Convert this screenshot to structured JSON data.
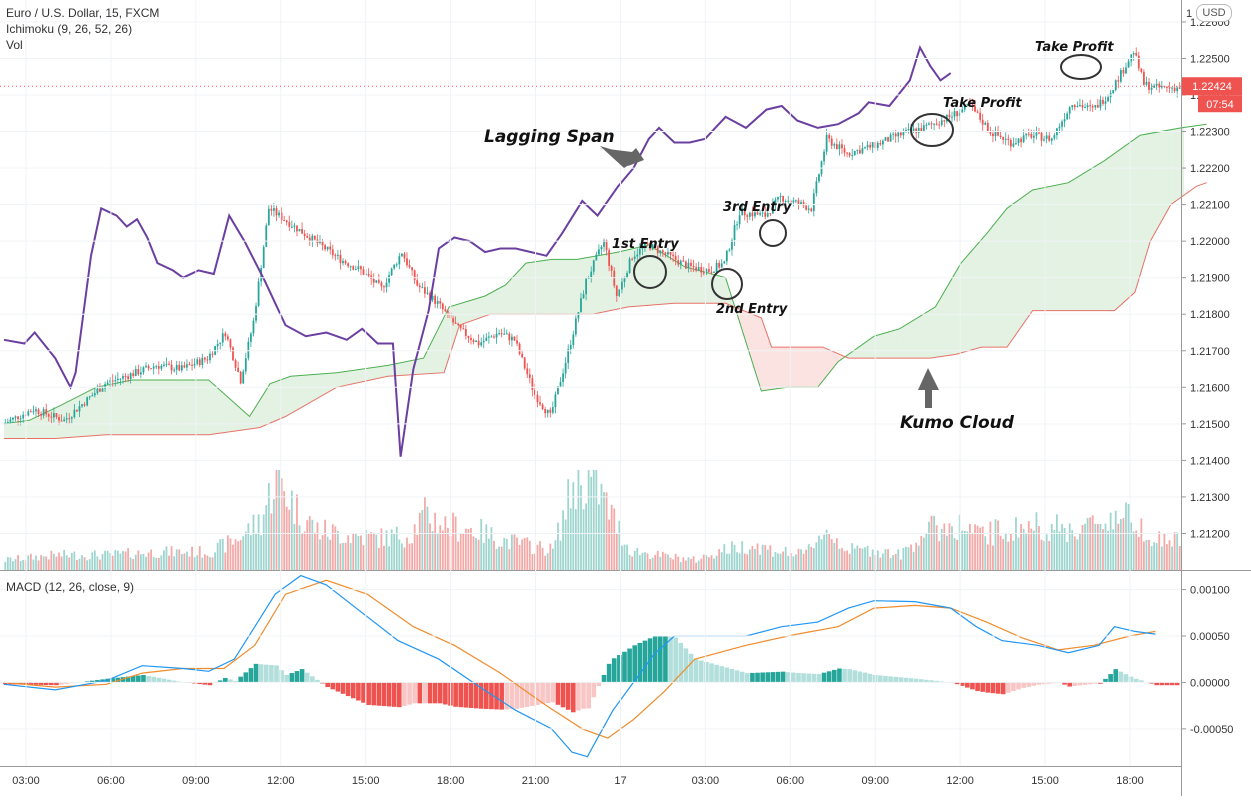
{
  "header": {
    "symbol_line": "Euro / U.S. Dollar, 15, FXCM",
    "ichimoku_line": "Ichimoku (9, 26, 52, 26)",
    "vol_line": "Vol",
    "macd_line": "MACD (12, 26, close, 9)",
    "currency_badge": "USD",
    "scale_top_label": "1"
  },
  "price_tag": {
    "price": "1.22424",
    "countdown": "07:54",
    "color": "#ef5350"
  },
  "colors": {
    "up": "#26a69a",
    "down": "#ef5350",
    "vol_up": "#9fd5cf",
    "vol_down": "#f3a9a7",
    "lagging": "#6b3fa0",
    "senkou_a": "#4caf50",
    "senkou_b": "#e57368",
    "cloud_bull": "#e3f2e3",
    "cloud_bear": "#fbe3e2",
    "macd": "#2196f3",
    "signal": "#ef8c2d",
    "hist_up_strong": "#26a69a",
    "hist_up_weak": "#b2dfdb",
    "hist_down_strong": "#ef5350",
    "hist_down_weak": "#f8c6c4"
  },
  "chart_data": {
    "type": "candlestick",
    "title": "Euro / U.S. Dollar, 15, FXCM",
    "x_tick_labels": [
      "03:00",
      "06:00",
      "09:00",
      "12:00",
      "15:00",
      "18:00",
      "21:00",
      "17",
      "03:00",
      "06:00",
      "09:00",
      "12:00",
      "15:00",
      "18:00"
    ],
    "price_axis": {
      "ylim": [
        1.211,
        1.2266
      ],
      "tick_labels": [
        "1.22600",
        "1.22500",
        "1.22400",
        "1.22300",
        "1.22200",
        "1.22100",
        "1.22000",
        "1.21900",
        "1.21800",
        "1.21700",
        "1.21600",
        "1.21500",
        "1.21400",
        "1.21300",
        "1.21200"
      ],
      "tick_values": [
        1.226,
        1.225,
        1.224,
        1.223,
        1.222,
        1.221,
        1.22,
        1.219,
        1.218,
        1.217,
        1.216,
        1.215,
        1.214,
        1.213,
        1.212
      ]
    },
    "macd_axis": {
      "ylim": [
        -0.0009,
        0.0012
      ],
      "tick_labels": [
        "0.00100",
        "0.00050",
        "0.00000",
        "-0.00050"
      ],
      "tick_values": [
        0.001,
        0.0005,
        0.0,
        -0.0005
      ]
    },
    "candle_anchors": [
      [
        0,
        1.215
      ],
      [
        12,
        1.2154
      ],
      [
        24,
        1.2151
      ],
      [
        40,
        1.2161
      ],
      [
        52,
        1.2164
      ],
      [
        60,
        1.2166
      ],
      [
        70,
        1.2165
      ],
      [
        80,
        1.2168
      ],
      [
        87,
        1.2175
      ],
      [
        93,
        1.2162
      ],
      [
        98,
        1.2178
      ],
      [
        104,
        1.2209
      ],
      [
        112,
        1.2205
      ],
      [
        122,
        1.22
      ],
      [
        132,
        1.2195
      ],
      [
        140,
        1.2192
      ],
      [
        148,
        1.2187
      ],
      [
        156,
        1.2197
      ],
      [
        162,
        1.2188
      ],
      [
        170,
        1.2183
      ],
      [
        178,
        1.2176
      ],
      [
        186,
        1.2172
      ],
      [
        194,
        1.2175
      ],
      [
        200,
        1.2173
      ],
      [
        208,
        1.2158
      ],
      [
        214,
        1.2152
      ],
      [
        220,
        1.2167
      ],
      [
        228,
        1.2189
      ],
      [
        235,
        1.22
      ],
      [
        240,
        1.2185
      ],
      [
        246,
        1.2196
      ],
      [
        252,
        1.2199
      ],
      [
        260,
        1.2196
      ],
      [
        268,
        1.2193
      ],
      [
        276,
        1.2192
      ],
      [
        282,
        1.2194
      ],
      [
        288,
        1.2208
      ],
      [
        298,
        1.2207
      ],
      [
        304,
        1.2212
      ],
      [
        316,
        1.2209
      ],
      [
        322,
        1.2228
      ],
      [
        330,
        1.2224
      ],
      [
        340,
        1.2226
      ],
      [
        350,
        1.2229
      ],
      [
        360,
        1.2231
      ],
      [
        370,
        1.2234
      ],
      [
        378,
        1.2237
      ],
      [
        386,
        1.223
      ],
      [
        394,
        1.2227
      ],
      [
        402,
        1.2229
      ],
      [
        410,
        1.2228
      ],
      [
        418,
        1.2238
      ],
      [
        426,
        1.2236
      ],
      [
        432,
        1.224
      ],
      [
        438,
        1.2247
      ],
      [
        442,
        1.2252
      ],
      [
        446,
        1.2243
      ],
      [
        450,
        1.2242
      ]
    ],
    "lagging_span": [
      [
        0,
        1.2173
      ],
      [
        8,
        1.2172
      ],
      [
        12,
        1.2175
      ],
      [
        20,
        1.2168
      ],
      [
        26,
        1.216
      ],
      [
        28,
        1.2164
      ],
      [
        34,
        1.2196
      ],
      [
        38,
        1.2209
      ],
      [
        44,
        1.2207
      ],
      [
        48,
        1.2204
      ],
      [
        52,
        1.2206
      ],
      [
        56,
        1.2201
      ],
      [
        60,
        1.2194
      ],
      [
        66,
        1.2192
      ],
      [
        70,
        1.219
      ],
      [
        76,
        1.2192
      ],
      [
        82,
        1.2191
      ],
      [
        88,
        1.2207
      ],
      [
        94,
        1.22
      ],
      [
        102,
        1.2189
      ],
      [
        110,
        1.2177
      ],
      [
        118,
        1.2174
      ],
      [
        126,
        1.2175
      ],
      [
        134,
        1.2173
      ],
      [
        140,
        1.2176
      ],
      [
        146,
        1.2172
      ],
      [
        152,
        1.2172
      ],
      [
        155,
        1.2141
      ],
      [
        160,
        1.2165
      ],
      [
        166,
        1.2181
      ],
      [
        170,
        1.2198
      ],
      [
        176,
        1.2201
      ],
      [
        182,
        1.22
      ],
      [
        188,
        1.2197
      ],
      [
        194,
        1.2198
      ],
      [
        200,
        1.2198
      ],
      [
        206,
        1.2197
      ],
      [
        212,
        1.2196
      ],
      [
        218,
        1.2202
      ],
      [
        226,
        1.2211
      ],
      [
        232,
        1.2207
      ],
      [
        240,
        1.2215
      ],
      [
        246,
        1.222
      ],
      [
        252,
        1.2228
      ],
      [
        256,
        1.2231
      ],
      [
        262,
        1.2227
      ],
      [
        268,
        1.2227
      ],
      [
        274,
        1.2228
      ],
      [
        282,
        1.2234
      ],
      [
        290,
        1.2231
      ],
      [
        298,
        1.2236
      ],
      [
        304,
        1.2237
      ],
      [
        310,
        1.2233
      ],
      [
        318,
        1.2231
      ],
      [
        326,
        1.2232
      ],
      [
        334,
        1.2235
      ],
      [
        338,
        1.2238
      ],
      [
        346,
        1.2237
      ],
      [
        354,
        1.2244
      ],
      [
        358,
        1.2253
      ],
      [
        362,
        1.2248
      ],
      [
        366,
        1.2244
      ],
      [
        370,
        1.2246
      ]
    ],
    "senkou_a": [
      [
        0,
        1.215
      ],
      [
        10,
        1.2151
      ],
      [
        22,
        1.2155
      ],
      [
        36,
        1.216
      ],
      [
        50,
        1.2162
      ],
      [
        64,
        1.2162
      ],
      [
        80,
        1.2162
      ],
      [
        96,
        1.2152
      ],
      [
        104,
        1.2161
      ],
      [
        112,
        1.2163
      ],
      [
        130,
        1.2164
      ],
      [
        150,
        1.2166
      ],
      [
        164,
        1.2168
      ],
      [
        174,
        1.2182
      ],
      [
        188,
        1.2185
      ],
      [
        196,
        1.2188
      ],
      [
        204,
        1.2194
      ],
      [
        214,
        1.2195
      ],
      [
        224,
        1.2195
      ],
      [
        240,
        1.2197
      ],
      [
        252,
        1.2199
      ],
      [
        266,
        1.2193
      ],
      [
        282,
        1.219
      ],
      [
        296,
        1.2159
      ],
      [
        306,
        1.216
      ],
      [
        318,
        1.216
      ],
      [
        326,
        1.2167
      ],
      [
        340,
        1.2174
      ],
      [
        350,
        1.2176
      ],
      [
        364,
        1.2182
      ],
      [
        374,
        1.2194
      ],
      [
        384,
        1.2202
      ],
      [
        392,
        1.2209
      ],
      [
        402,
        1.2214
      ],
      [
        416,
        1.2216
      ],
      [
        430,
        1.2222
      ],
      [
        444,
        1.2229
      ],
      [
        460,
        1.2231
      ],
      [
        470,
        1.2232
      ]
    ],
    "senkou_b": [
      [
        0,
        1.2146
      ],
      [
        20,
        1.2146
      ],
      [
        40,
        1.2147
      ],
      [
        60,
        1.2147
      ],
      [
        80,
        1.2147
      ],
      [
        100,
        1.2149
      ],
      [
        110,
        1.2152
      ],
      [
        130,
        1.216
      ],
      [
        150,
        1.2163
      ],
      [
        172,
        1.2164
      ],
      [
        178,
        1.2177
      ],
      [
        190,
        1.218
      ],
      [
        210,
        1.218
      ],
      [
        230,
        1.218
      ],
      [
        244,
        1.2182
      ],
      [
        262,
        1.2183
      ],
      [
        282,
        1.2183
      ],
      [
        296,
        1.2179
      ],
      [
        300,
        1.2171
      ],
      [
        320,
        1.2171
      ],
      [
        330,
        1.2168
      ],
      [
        350,
        1.2168
      ],
      [
        362,
        1.2168
      ],
      [
        372,
        1.2169
      ],
      [
        382,
        1.2171
      ],
      [
        392,
        1.2171
      ],
      [
        402,
        1.2181
      ],
      [
        420,
        1.2181
      ],
      [
        434,
        1.2181
      ],
      [
        442,
        1.2186
      ],
      [
        448,
        1.22
      ],
      [
        456,
        1.221
      ],
      [
        466,
        1.2215
      ],
      [
        470,
        1.2216
      ]
    ],
    "volume_anchors": [
      [
        0,
        0.1
      ],
      [
        20,
        0.15
      ],
      [
        40,
        0.15
      ],
      [
        60,
        0.18
      ],
      [
        80,
        0.18
      ],
      [
        90,
        0.3
      ],
      [
        100,
        0.5
      ],
      [
        106,
        0.95
      ],
      [
        114,
        0.6
      ],
      [
        122,
        0.4
      ],
      [
        134,
        0.35
      ],
      [
        146,
        0.32
      ],
      [
        158,
        0.35
      ],
      [
        164,
        0.55
      ],
      [
        172,
        0.45
      ],
      [
        184,
        0.4
      ],
      [
        194,
        0.3
      ],
      [
        204,
        0.25
      ],
      [
        214,
        0.2
      ],
      [
        222,
        0.85
      ],
      [
        230,
        0.9
      ],
      [
        238,
        0.5
      ],
      [
        244,
        0.2
      ],
      [
        254,
        0.15
      ],
      [
        270,
        0.1
      ],
      [
        280,
        0.2
      ],
      [
        292,
        0.25
      ],
      [
        300,
        0.2
      ],
      [
        312,
        0.15
      ],
      [
        320,
        0.4
      ],
      [
        330,
        0.2
      ],
      [
        340,
        0.2
      ],
      [
        350,
        0.15
      ],
      [
        360,
        0.4
      ],
      [
        372,
        0.45
      ],
      [
        380,
        0.35
      ],
      [
        392,
        0.4
      ],
      [
        404,
        0.45
      ],
      [
        414,
        0.4
      ],
      [
        426,
        0.45
      ],
      [
        434,
        0.55
      ],
      [
        442,
        0.5
      ],
      [
        450,
        0.3
      ]
    ],
    "macd": [
      [
        0,
        -2e-05
      ],
      [
        20,
        -8e-05
      ],
      [
        40,
        2e-05
      ],
      [
        54,
        0.00018
      ],
      [
        70,
        0.00015
      ],
      [
        80,
        0.00012
      ],
      [
        90,
        0.00025
      ],
      [
        98,
        0.0006
      ],
      [
        106,
        0.00095
      ],
      [
        116,
        0.00115
      ],
      [
        126,
        0.00105
      ],
      [
        140,
        0.00075
      ],
      [
        154,
        0.00045
      ],
      [
        170,
        0.00025
      ],
      [
        186,
        -5e-05
      ],
      [
        200,
        -0.0003
      ],
      [
        214,
        -0.0005
      ],
      [
        222,
        -0.00075
      ],
      [
        228,
        -0.0008
      ],
      [
        232,
        -0.0006
      ],
      [
        238,
        -0.0003
      ],
      [
        246,
        0.0
      ],
      [
        254,
        0.0003
      ],
      [
        262,
        0.0005
      ],
      [
        276,
        0.0005
      ],
      [
        290,
        0.0005
      ],
      [
        304,
        0.0006
      ],
      [
        318,
        0.00065
      ],
      [
        330,
        0.0008
      ],
      [
        340,
        0.00088
      ],
      [
        356,
        0.00087
      ],
      [
        370,
        0.0008
      ],
      [
        380,
        0.0006
      ],
      [
        390,
        0.00045
      ],
      [
        404,
        0.0004
      ],
      [
        416,
        0.00032
      ],
      [
        428,
        0.0004
      ],
      [
        434,
        0.0006
      ],
      [
        442,
        0.00055
      ],
      [
        450,
        0.00052
      ]
    ],
    "signal": [
      [
        0,
        0.0
      ],
      [
        20,
        -5e-05
      ],
      [
        40,
        -2e-05
      ],
      [
        54,
        0.0001
      ],
      [
        70,
        0.00015
      ],
      [
        86,
        0.00015
      ],
      [
        98,
        0.0004
      ],
      [
        110,
        0.00095
      ],
      [
        126,
        0.0011
      ],
      [
        142,
        0.00095
      ],
      [
        160,
        0.0006
      ],
      [
        176,
        0.0004
      ],
      [
        194,
        0.0001
      ],
      [
        212,
        -0.00025
      ],
      [
        226,
        -0.0005
      ],
      [
        236,
        -0.0006
      ],
      [
        246,
        -0.0004
      ],
      [
        258,
        -0.0001
      ],
      [
        270,
        0.00025
      ],
      [
        290,
        0.0004
      ],
      [
        310,
        0.00052
      ],
      [
        326,
        0.0006
      ],
      [
        340,
        0.0008
      ],
      [
        356,
        0.00083
      ],
      [
        370,
        0.0008
      ],
      [
        384,
        0.00065
      ],
      [
        398,
        0.00048
      ],
      [
        412,
        0.00035
      ],
      [
        426,
        0.0004
      ],
      [
        440,
        0.0005
      ],
      [
        450,
        0.00055
      ]
    ]
  },
  "annotations": {
    "lagging_span": "Lagging Span",
    "kumo_cloud": "Kumo Cloud",
    "entry_1": "1st Entry",
    "entry_2": "2nd Entry",
    "entry_3": "3rd Entry",
    "take_profit_1": "Take Profit",
    "take_profit_2": "Take Profit"
  }
}
